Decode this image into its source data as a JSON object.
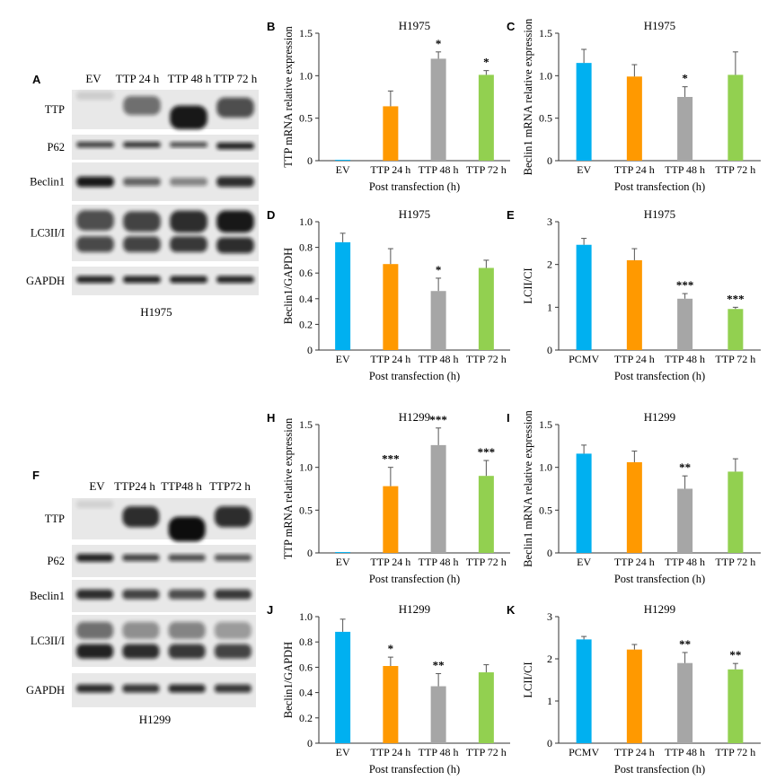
{
  "blots": [
    {
      "letter": "A",
      "lanes": [
        "EV",
        "TTP 24 h",
        "TTP 48 h",
        "TTP 72 h"
      ],
      "rows": [
        "TTP",
        "P62",
        "Beclin1",
        "LC3II/I",
        "GAPDH"
      ],
      "caption": "H1975"
    },
    {
      "letter": "F",
      "lanes": [
        "EV",
        "TTP24 h",
        "TTP48 h",
        "TTP72 h"
      ],
      "rows": [
        "TTP",
        "P62",
        "Beclin1",
        "LC3II/I",
        "GAPDH"
      ],
      "caption": "H1299"
    }
  ],
  "chart_data": [
    {
      "letter": "B",
      "type": "bar",
      "title": "H1975",
      "ylabel": "TTP mRNA relative expression",
      "xlabel": "Post transfection (h)",
      "categories": [
        "EV",
        "TTP 24 h",
        "TTP 48 h",
        "TTP 72 h"
      ],
      "values": [
        0.01,
        0.64,
        1.2,
        1.01
      ],
      "errors": [
        0,
        0.18,
        0.08,
        0.05
      ],
      "significance": [
        "",
        "",
        "*",
        "*"
      ],
      "ylim": [
        0,
        1.5
      ],
      "yticks": [
        "0",
        "0.5",
        "1.0",
        "1.5"
      ]
    },
    {
      "letter": "C",
      "type": "bar",
      "title": "H1975",
      "ylabel": "Beclin1 mRNA relative expression",
      "xlabel": "Post transfection (h)",
      "categories": [
        "EV",
        "TTP 24 h",
        "TTP 48 h",
        "TTP 72 h"
      ],
      "values": [
        1.15,
        0.99,
        0.75,
        1.01
      ],
      "errors": [
        0.16,
        0.14,
        0.12,
        0.27
      ],
      "significance": [
        "",
        "",
        "*",
        ""
      ],
      "ylim": [
        0,
        1.5
      ],
      "yticks": [
        "0",
        "0.5",
        "1.0",
        "1.5"
      ]
    },
    {
      "letter": "D",
      "type": "bar",
      "title": "H1975",
      "ylabel": "Beclin1/GAPDH",
      "xlabel": "Post transfection (h)",
      "categories": [
        "EV",
        "TTP 24 h",
        "TTP 48 h",
        "TTP 72 h"
      ],
      "values": [
        0.84,
        0.67,
        0.46,
        0.64
      ],
      "errors": [
        0.07,
        0.12,
        0.1,
        0.06
      ],
      "significance": [
        "",
        "",
        "*",
        ""
      ],
      "ylim": [
        0,
        1.0
      ],
      "yticks": [
        "0",
        "0.2",
        "0.4",
        "0.6",
        "0.8",
        "1.0"
      ]
    },
    {
      "letter": "E",
      "type": "bar",
      "title": "H1975",
      "ylabel": "LCII/CI",
      "xlabel": "Post transfection (h)",
      "categories": [
        "PCMV",
        "TTP 24 h",
        "TTP 48 h",
        "TTP 72 h"
      ],
      "values": [
        2.46,
        2.1,
        1.2,
        0.96
      ],
      "errors": [
        0.15,
        0.27,
        0.12,
        0.04
      ],
      "significance": [
        "",
        "",
        "***",
        "***"
      ],
      "ylim": [
        0,
        3
      ],
      "yticks": [
        "0",
        "1",
        "2",
        "3"
      ]
    },
    {
      "letter": "H",
      "type": "bar",
      "title": "H1299",
      "ylabel": "TTP mRNA relative expression",
      "xlabel": "Post transfection (h)",
      "categories": [
        "EV",
        "TTP 24 h",
        "TTP 48 h",
        "TTP 72 h"
      ],
      "values": [
        0.01,
        0.78,
        1.26,
        0.9
      ],
      "errors": [
        0,
        0.22,
        0.2,
        0.18
      ],
      "significance": [
        "",
        "***",
        "***",
        "***"
      ],
      "ylim": [
        0,
        1.5
      ],
      "yticks": [
        "0",
        "0.5",
        "1.0",
        "1.5"
      ]
    },
    {
      "letter": "I",
      "type": "bar",
      "title": "H1299",
      "ylabel": "Beclin1 mRNA relative expression",
      "xlabel": "Post transfection (h)",
      "categories": [
        "EV",
        "TTP 24 h",
        "TTP 48 h",
        "TTP 72 h"
      ],
      "values": [
        1.16,
        1.06,
        0.75,
        0.95
      ],
      "errors": [
        0.1,
        0.13,
        0.15,
        0.15
      ],
      "significance": [
        "",
        "",
        "**",
        ""
      ],
      "ylim": [
        0,
        1.5
      ],
      "yticks": [
        "0",
        "0.5",
        "1.0",
        "1.5"
      ]
    },
    {
      "letter": "J",
      "type": "bar",
      "title": "H1299",
      "ylabel": "Beclin1/GAPDH",
      "xlabel": "Post transfection (h)",
      "categories": [
        "EV",
        "TTP 24 h",
        "TTP 48 h",
        "TTP 72 h"
      ],
      "values": [
        0.88,
        0.61,
        0.45,
        0.56
      ],
      "errors": [
        0.1,
        0.07,
        0.1,
        0.06
      ],
      "significance": [
        "",
        "*",
        "**",
        ""
      ],
      "ylim": [
        0,
        1.0
      ],
      "yticks": [
        "0",
        "0.2",
        "0.4",
        "0.6",
        "0.8",
        "1.0"
      ]
    },
    {
      "letter": "K",
      "type": "bar",
      "title": "H1299",
      "ylabel": "LCII/CI",
      "xlabel": "Post transfection (h)",
      "categories": [
        "PCMV",
        "TTP 24 h",
        "TTP 48 h",
        "TTP 72 h"
      ],
      "values": [
        2.46,
        2.22,
        1.9,
        1.75
      ],
      "errors": [
        0.07,
        0.12,
        0.25,
        0.14
      ],
      "significance": [
        "",
        "",
        "**",
        "**"
      ],
      "ylim": [
        0,
        3
      ],
      "yticks": [
        "0",
        "1",
        "2",
        "3"
      ]
    }
  ],
  "colors": {
    "bars": [
      "#00b0f0",
      "#ff9900",
      "#a6a6a6",
      "#92d050"
    ],
    "axis": "#333333",
    "blot_background": "#e8e8e8",
    "band": "#0a0a0a"
  }
}
